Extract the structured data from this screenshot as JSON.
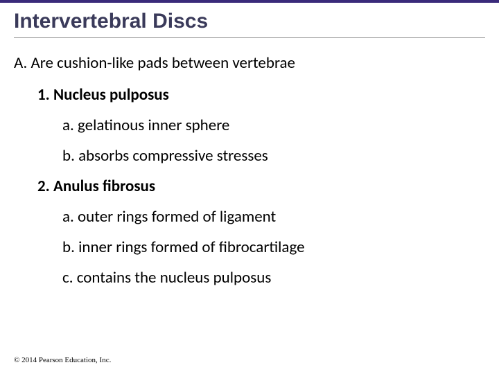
{
  "accent_bar_color": "#3a2a7a",
  "title": "Intervertebral Discs",
  "outline": {
    "A": "A. Are cushion-like pads between vertebrae",
    "item1": "1. Nucleus pulposus",
    "item1a": "a. gelatinous inner sphere",
    "item1b": "b. absorbs compressive stresses",
    "item2": "2. Anulus fibrosus",
    "item2a": "a. outer rings formed of ligament",
    "item2b": "b. inner rings formed of fibrocartilage",
    "item2c": "c. contains the nucleus pulposus"
  },
  "footer": "© 2014 Pearson Education, Inc."
}
